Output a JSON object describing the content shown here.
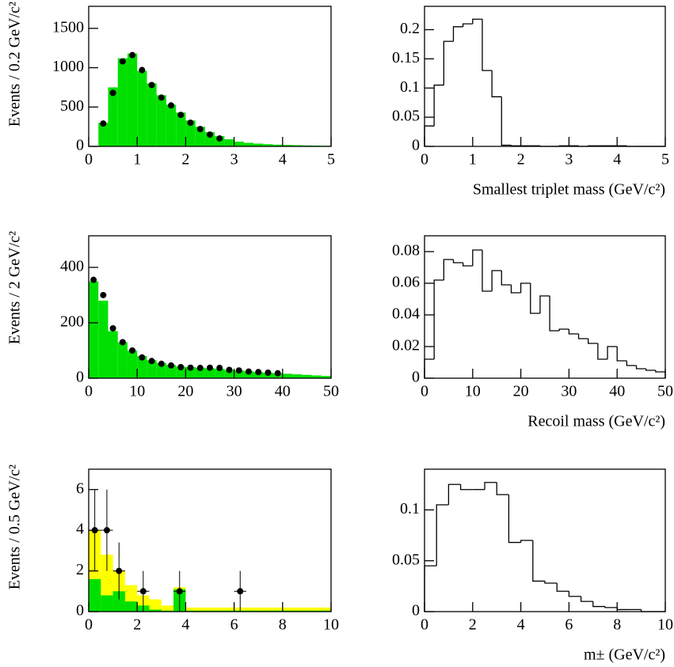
{
  "chart_data": [
    {
      "type": "histogram",
      "ylabel": "Events / 0.2 GeV/c²",
      "xlim": [
        0,
        5
      ],
      "ylim": [
        0,
        1780
      ],
      "xticks": [
        0,
        1,
        2,
        3,
        4,
        5
      ],
      "yticks": [
        0,
        500,
        1000,
        1500
      ],
      "bins": [
        0.2,
        0.4,
        0.6,
        0.8,
        1,
        1.2,
        1.4,
        1.6,
        1.8,
        2,
        2.2,
        2.4,
        2.6,
        2.8,
        3,
        3.2,
        3.4,
        3.6,
        3.8,
        4,
        4.2,
        4.4,
        4.6,
        4.8,
        5
      ],
      "series": [
        {
          "color": "#00e000",
          "fill": true,
          "values": [
            300,
            750,
            1120,
            1180,
            960,
            800,
            650,
            530,
            430,
            330,
            250,
            180,
            130,
            90,
            60,
            45,
            35,
            28,
            22,
            18,
            15,
            12,
            10,
            8
          ]
        }
      ],
      "points": {
        "color": "#000000",
        "x": [
          0.3,
          0.5,
          0.7,
          0.9,
          1.1,
          1.3,
          1.5,
          1.7,
          1.9,
          2.1,
          2.3,
          2.5,
          2.7
        ],
        "values": [
          290,
          680,
          1080,
          1160,
          970,
          780,
          620,
          520,
          400,
          300,
          220,
          150,
          100
        ]
      }
    },
    {
      "type": "histogram",
      "xlabel": "Smallest triplet mass (GeV/c²)",
      "xlim": [
        0,
        5
      ],
      "ylim": [
        0,
        0.24
      ],
      "xticks": [
        0,
        1,
        2,
        3,
        4,
        5
      ],
      "yticks": [
        0,
        0.05,
        0.1,
        0.15,
        0.2
      ],
      "bins": [
        0,
        0.2,
        0.4,
        0.6,
        0.8,
        1,
        1.2,
        1.4,
        1.6,
        1.8,
        2,
        2.2,
        2.4,
        2.6,
        2.8,
        3,
        3.2,
        3.4,
        3.6,
        3.8,
        4,
        4.2,
        4.4,
        4.6,
        4.8,
        5
      ],
      "series": [
        {
          "color": "#000000",
          "fill": false,
          "values": [
            0.035,
            0.105,
            0.18,
            0.205,
            0.21,
            0.218,
            0.13,
            0.085,
            0.002,
            0.001,
            0.001,
            0.001,
            0,
            0,
            0.001,
            0.001,
            0,
            0.001,
            0.001,
            0.001,
            0.001,
            0,
            0,
            0,
            0
          ]
        }
      ]
    },
    {
      "type": "histogram",
      "ylabel": "Events / 2 GeV/c²",
      "xlim": [
        0,
        50
      ],
      "ylim": [
        0,
        514
      ],
      "xticks": [
        0,
        10,
        20,
        30,
        40,
        50
      ],
      "yticks": [
        0,
        200,
        400
      ],
      "bins": [
        0,
        2,
        4,
        6,
        8,
        10,
        12,
        14,
        16,
        18,
        20,
        22,
        24,
        26,
        28,
        30,
        32,
        34,
        36,
        38,
        40,
        42,
        44,
        46,
        48,
        50
      ],
      "series": [
        {
          "color": "#00e000",
          "fill": true,
          "values": [
            350,
            280,
            170,
            130,
            100,
            80,
            65,
            55,
            48,
            42,
            40,
            38,
            36,
            34,
            30,
            28,
            25,
            22,
            20,
            18,
            16,
            14,
            12,
            10,
            8
          ]
        }
      ],
      "points": {
        "color": "#000000",
        "x": [
          1,
          3,
          5,
          7,
          9,
          11,
          13,
          15,
          17,
          19,
          21,
          23,
          25,
          27,
          29,
          31,
          33,
          35,
          37,
          39
        ],
        "values": [
          355,
          300,
          180,
          130,
          100,
          75,
          62,
          52,
          46,
          40,
          38,
          37,
          38,
          37,
          30,
          28,
          24,
          22,
          20,
          18
        ]
      }
    },
    {
      "type": "histogram",
      "xlabel": "Recoil mass (GeV/c²)",
      "xlim": [
        0,
        50
      ],
      "ylim": [
        0,
        0.09
      ],
      "xticks": [
        0,
        10,
        20,
        30,
        40,
        50
      ],
      "yticks": [
        0,
        0.02,
        0.04,
        0.06,
        0.08
      ],
      "bins": [
        0,
        2,
        4,
        6,
        8,
        10,
        12,
        14,
        16,
        18,
        20,
        22,
        24,
        26,
        28,
        30,
        32,
        34,
        36,
        38,
        40,
        42,
        44,
        46,
        48,
        50
      ],
      "series": [
        {
          "color": "#000000",
          "fill": false,
          "values": [
            0.012,
            0.062,
            0.075,
            0.073,
            0.071,
            0.081,
            0.055,
            0.068,
            0.059,
            0.054,
            0.06,
            0.041,
            0.052,
            0.03,
            0.031,
            0.028,
            0.025,
            0.022,
            0.012,
            0.02,
            0.011,
            0.008,
            0.006,
            0.005,
            0.004
          ]
        }
      ]
    },
    {
      "type": "histogram",
      "ylabel": "Events / 0.5 GeV/c²",
      "xlim": [
        0,
        10
      ],
      "ylim": [
        0,
        7
      ],
      "xticks": [
        0,
        2,
        4,
        6,
        8,
        10
      ],
      "yticks": [
        0,
        2,
        4,
        6
      ],
      "bins": [
        0,
        0.5,
        1,
        1.5,
        2,
        2.5,
        3,
        3.5,
        4,
        4.5,
        5,
        5.5,
        6,
        6.5,
        7,
        7.5,
        8,
        8.5,
        9,
        9.5,
        10
      ],
      "series": [
        {
          "color": "#ffff00",
          "fill": true,
          "values": [
            4,
            2.8,
            2,
            1.3,
            0.8,
            0.6,
            0.3,
            1.2,
            0.2,
            0.2,
            0.2,
            0.2,
            0.2,
            0.2,
            0.2,
            0.2,
            0.2,
            0.2,
            0.2,
            0.2
          ]
        },
        {
          "color": "#00e000",
          "fill": true,
          "values": [
            1.6,
            0.8,
            1,
            0.5,
            0.3,
            0.1,
            0.05,
            1.1,
            0.05,
            0.05,
            0.05,
            0.05,
            0.05,
            0.05,
            0.05,
            0.05,
            0.05,
            0.05,
            0.05,
            0.05
          ]
        }
      ],
      "points": {
        "color": "#000000",
        "x": [
          0.25,
          0.75,
          1.25,
          2.25,
          3.75,
          6.25
        ],
        "values": [
          4,
          4,
          2,
          1,
          1,
          1
        ],
        "errors": [
          2,
          2,
          1.4,
          1,
          1,
          1
        ]
      }
    },
    {
      "type": "histogram",
      "xlabel": "m± (GeV/c²)",
      "xlim": [
        0,
        10
      ],
      "ylim": [
        0,
        0.14
      ],
      "xticks": [
        0,
        2,
        4,
        6,
        8,
        10
      ],
      "yticks": [
        0,
        0.05,
        0.1
      ],
      "bins": [
        0,
        0.5,
        1,
        1.5,
        2,
        2.5,
        3,
        3.5,
        4,
        4.5,
        5,
        5.5,
        6,
        6.5,
        7,
        7.5,
        8,
        8.5,
        9,
        9.5,
        10
      ],
      "series": [
        {
          "color": "#000000",
          "fill": false,
          "values": [
            0.045,
            0.105,
            0.125,
            0.12,
            0.12,
            0.127,
            0.115,
            0.068,
            0.07,
            0.03,
            0.028,
            0.02,
            0.015,
            0.01,
            0.005,
            0.004,
            0.002,
            0.002,
            0,
            0
          ]
        }
      ]
    }
  ]
}
